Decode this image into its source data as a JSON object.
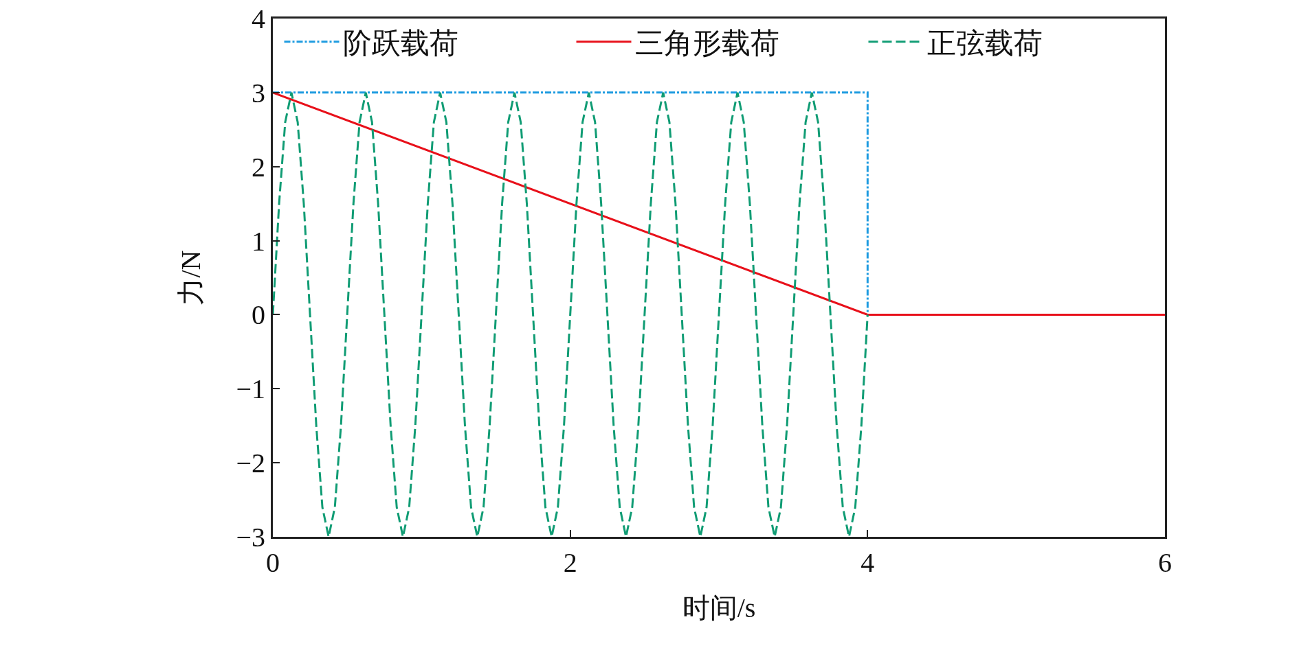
{
  "chart_data": {
    "type": "line",
    "xlabel": "时间/s",
    "ylabel": "力/N",
    "xlim": [
      0,
      6
    ],
    "xticks": [
      0,
      2,
      4,
      6
    ],
    "ylim": [
      -3,
      4
    ],
    "yticks": [
      {
        "value": -3,
        "label": "−3"
      },
      {
        "value": -2,
        "label": "−2"
      },
      {
        "value": -1,
        "label": "−1"
      },
      0,
      1,
      2,
      3,
      4
    ],
    "legend": "top",
    "marker": "none",
    "series": [
      {
        "name": "阶跃载荷",
        "color": "#1e9be0",
        "line_style": "dashdot",
        "x": [
          0,
          4,
          4
        ],
        "values": [
          3,
          3,
          0
        ]
      },
      {
        "name": "三角形载荷",
        "color": "#e8101a",
        "line_style": "solid",
        "x": [
          0,
          4,
          6
        ],
        "values": [
          3,
          0,
          0
        ]
      },
      {
        "name": "正弦载荷",
        "color": "#109c74",
        "line_style": "dashed",
        "x": [
          0,
          0.042,
          0.083,
          0.125,
          0.167,
          0.208,
          0.25,
          0.292,
          0.333,
          0.375,
          0.417,
          0.458,
          0.5,
          0.542,
          0.583,
          0.625,
          0.667,
          0.708,
          0.75,
          0.792,
          0.833,
          0.875,
          0.917,
          0.958,
          1,
          1.042,
          1.083,
          1.125,
          1.167,
          1.208,
          1.25,
          1.292,
          1.333,
          1.375,
          1.417,
          1.458,
          1.5,
          1.542,
          1.583,
          1.625,
          1.667,
          1.708,
          1.75,
          1.792,
          1.833,
          1.875,
          1.917,
          1.958,
          2,
          2.042,
          2.083,
          2.125,
          2.167,
          2.208,
          2.25,
          2.292,
          2.333,
          2.375,
          2.417,
          2.458,
          2.5,
          2.542,
          2.583,
          2.625,
          2.667,
          2.708,
          2.75,
          2.792,
          2.833,
          2.875,
          2.917,
          2.958,
          3,
          3.042,
          3.083,
          3.125,
          3.167,
          3.208,
          3.25,
          3.292,
          3.333,
          3.375,
          3.417,
          3.458,
          3.5,
          3.542,
          3.583,
          3.625,
          3.667,
          3.708,
          3.75,
          3.792,
          3.833,
          3.875,
          3.917,
          3.958,
          4
        ],
        "values": [
          0,
          1.5,
          2.6,
          3,
          2.6,
          1.5,
          0,
          -1.5,
          -2.6,
          -3,
          -2.6,
          -1.5,
          0,
          1.5,
          2.6,
          3,
          2.6,
          1.5,
          0,
          -1.5,
          -2.6,
          -3,
          -2.6,
          -1.5,
          0,
          1.5,
          2.6,
          3,
          2.6,
          1.5,
          0,
          -1.5,
          -2.6,
          -3,
          -2.6,
          -1.5,
          0,
          1.5,
          2.6,
          3,
          2.6,
          1.5,
          0,
          -1.5,
          -2.6,
          -3,
          -2.6,
          -1.5,
          0,
          1.5,
          2.6,
          3,
          2.6,
          1.5,
          0,
          -1.5,
          -2.6,
          -3,
          -2.6,
          -1.5,
          0,
          1.5,
          2.6,
          3,
          2.6,
          1.5,
          0,
          -1.5,
          -2.6,
          -3,
          -2.6,
          -1.5,
          0,
          1.5,
          2.6,
          3,
          2.6,
          1.5,
          0,
          -1.5,
          -2.6,
          -3,
          -2.6,
          -1.5,
          0,
          1.5,
          2.6,
          3,
          2.6,
          1.5,
          0,
          -1.5,
          -2.6,
          -3,
          -2.6,
          -1.5,
          0
        ]
      }
    ]
  }
}
